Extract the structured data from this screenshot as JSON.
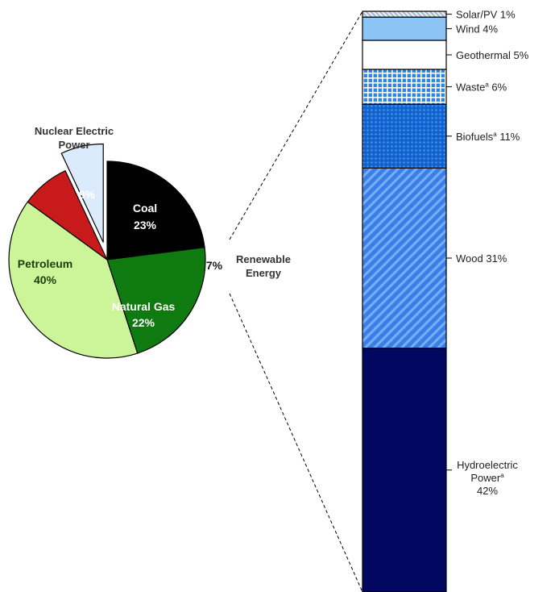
{
  "chart_data": [
    {
      "type": "pie",
      "title": "",
      "unit": "%",
      "slices": [
        {
          "label": "Coal",
          "value": 23,
          "value_label": "23%",
          "color": "#000000"
        },
        {
          "label": "Natural Gas",
          "value": 22,
          "value_label": "22%",
          "color": "#0f7a0f"
        },
        {
          "label": "Petroleum",
          "value": 40,
          "value_label": "40%",
          "color": "#ccf59a"
        },
        {
          "label": "Nuclear Electric Power",
          "value": 8,
          "value_label": "8%",
          "color": "#c81a1a"
        },
        {
          "label": "Renewable Energy",
          "value": 7,
          "value_label": "7%",
          "color": "#dcebfc",
          "exploded": true
        }
      ]
    },
    {
      "type": "bar",
      "subtype": "stacked-100",
      "title": "",
      "unit": "%",
      "segments": [
        {
          "label": "Hydroelectric Power",
          "sup": "a",
          "value": 42,
          "value_label": "42%",
          "color": "#02075f",
          "pattern": "solid"
        },
        {
          "label": "Wood",
          "value": 31,
          "value_label": "31%",
          "color": "#3a7ee8",
          "pattern": "diagonal"
        },
        {
          "label": "Biofuels",
          "sup": "a",
          "value": 11,
          "value_label": "11%",
          "color": "#1a6fd6",
          "pattern": "dots"
        },
        {
          "label": "Waste",
          "sup": "a",
          "value": 6,
          "value_label": "6%",
          "color": "#2f86e0",
          "pattern": "grid"
        },
        {
          "label": "Geothermal",
          "value": 5,
          "value_label": "5%",
          "color": "#ffffff",
          "pattern": "solid"
        },
        {
          "label": "Wind",
          "value": 4,
          "value_label": "4%",
          "color": "#8cc4f5",
          "pattern": "solid"
        },
        {
          "label": "Solar/PV",
          "value": 1,
          "value_label": "1%",
          "color": "#e4eef8",
          "pattern": "hatch"
        }
      ]
    }
  ]
}
